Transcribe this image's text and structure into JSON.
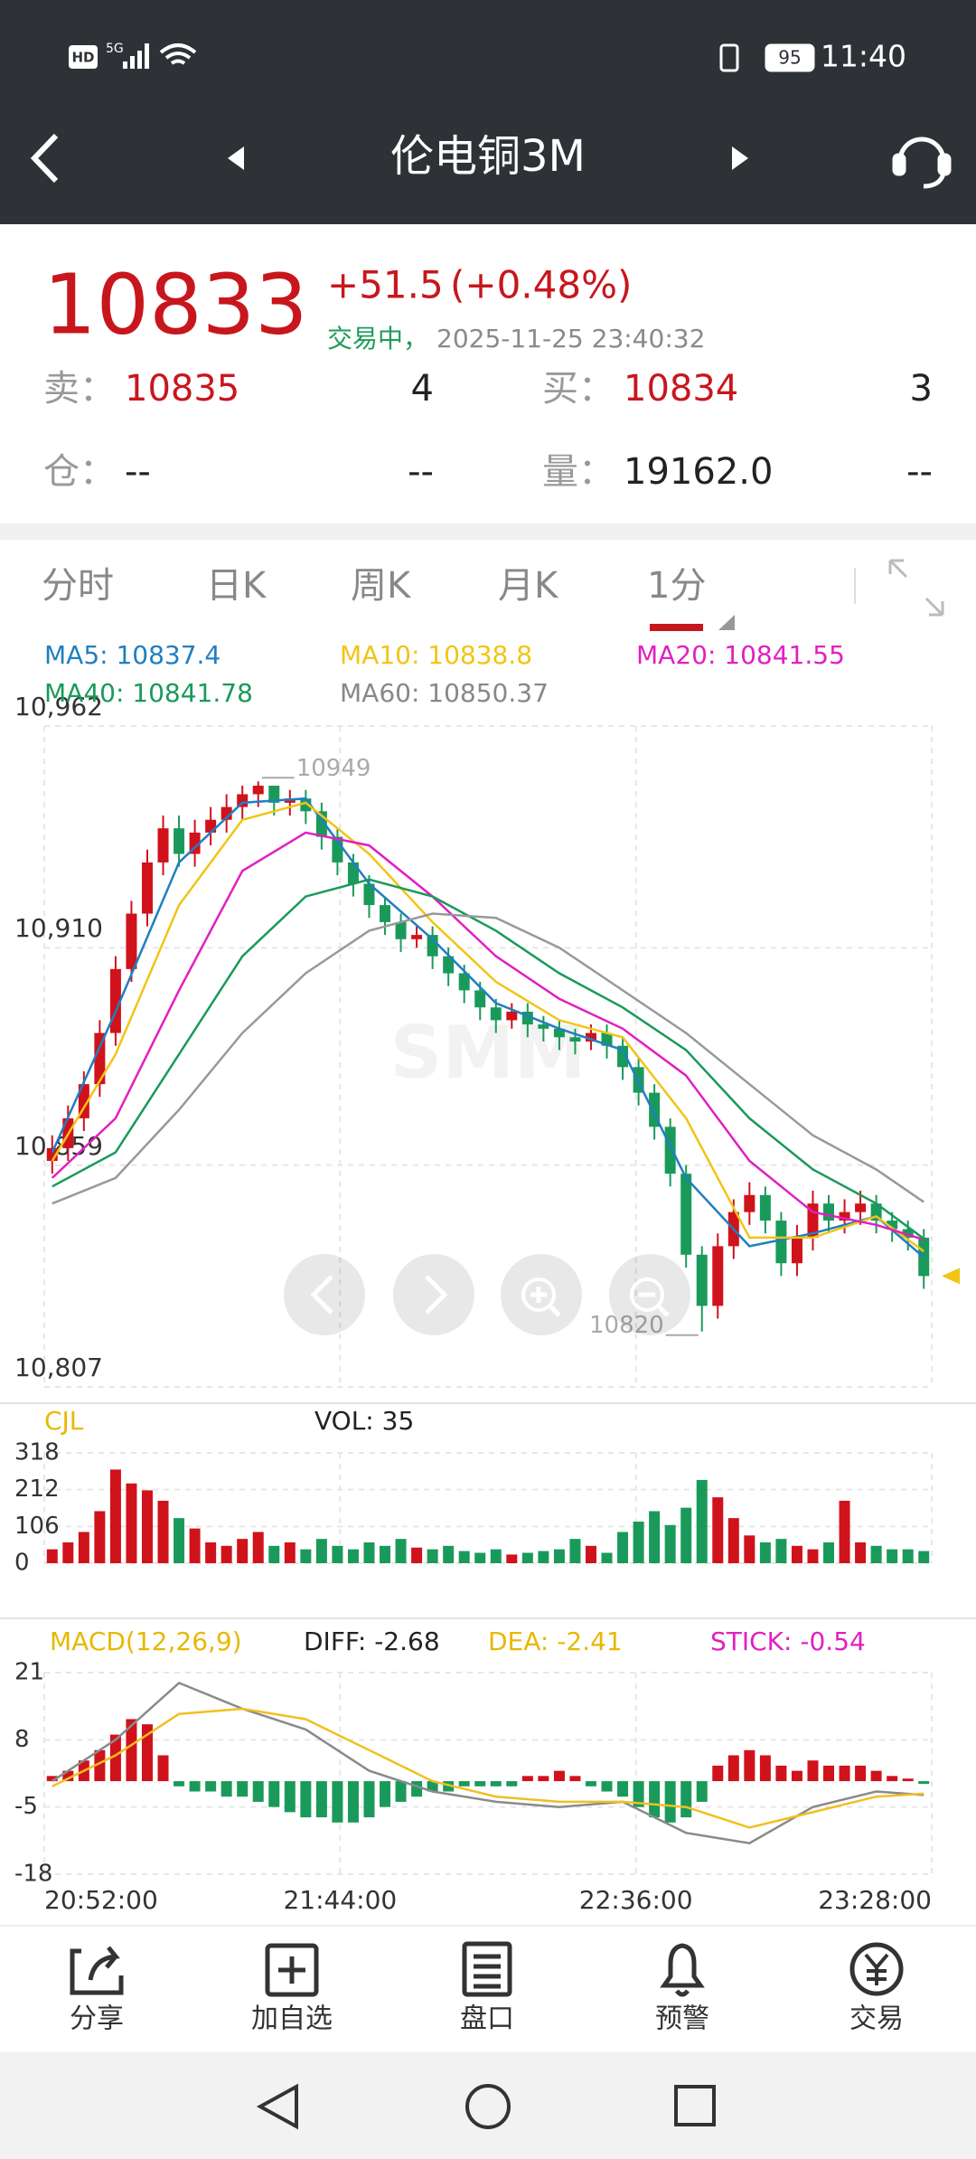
{
  "status_bar": {
    "hd": "HD",
    "network": "5G",
    "battery": "95",
    "time": "11:40"
  },
  "header": {
    "title": "伦电铜3M"
  },
  "quote": {
    "price": "10833",
    "change": "+51.5",
    "change_pct": "(+0.48%)",
    "status": "交易中，",
    "timestamp": "2025-11-25 23:40:32",
    "rows": [
      [
        "卖：",
        "10835",
        "4",
        "买：",
        "10834",
        "3"
      ],
      [
        "仓：",
        "--",
        "--",
        "量：",
        "19162.0",
        "--"
      ]
    ]
  },
  "tabs": [
    "分时",
    "日K",
    "周K",
    "月K",
    "1分"
  ],
  "active_tab": 4,
  "chart_data": [
    {
      "type": "candlestick",
      "watermark": "SMM",
      "ylim": [
        10807,
        10962
      ],
      "yticks": [
        {
          "value": 10807,
          "label": "10,807"
        },
        {
          "value": 10859,
          "label": "10,859"
        },
        {
          "value": 10910,
          "label": "10,910"
        },
        {
          "value": 10962,
          "label": "10,962"
        }
      ],
      "up_color": "#d0121b",
      "down_color": "#1a9a5a",
      "open": [
        10860,
        10863,
        10870,
        10878,
        10890,
        10905,
        10918,
        10930,
        10938,
        10932,
        10937,
        10940,
        10943,
        10946,
        10948,
        10944,
        10945,
        10942,
        10936,
        10930,
        10925,
        10920,
        10916,
        10912,
        10913,
        10908,
        10904,
        10900,
        10896,
        10893,
        10895,
        10892,
        10891,
        10889,
        10888,
        10890,
        10887,
        10882,
        10876,
        10868,
        10857,
        10838,
        10826,
        10840,
        10848,
        10852,
        10846,
        10836,
        10842,
        10850,
        10846,
        10848,
        10850,
        10846,
        10844,
        10842
      ],
      "high": [
        10866,
        10873,
        10881,
        10893,
        10908,
        10921,
        10933,
        10941,
        10941,
        10940,
        10943,
        10946,
        10948,
        10949,
        10948,
        10947,
        10947,
        10944,
        10938,
        10932,
        10927,
        10922,
        10918,
        10915,
        10915,
        10910,
        10906,
        10902,
        10898,
        10897,
        10897,
        10894,
        10893,
        10891,
        10892,
        10892,
        10889,
        10884,
        10878,
        10870,
        10859,
        10840,
        10843,
        10851,
        10855,
        10854,
        10848,
        10845,
        10853,
        10852,
        10851,
        10853,
        10852,
        10848,
        10846,
        10844
      ],
      "low": [
        10857,
        10860,
        10867,
        10875,
        10887,
        10902,
        10915,
        10927,
        10929,
        10929,
        10934,
        10937,
        10940,
        10943,
        10941,
        10941,
        10939,
        10933,
        10927,
        10922,
        10917,
        10913,
        10909,
        10910,
        10905,
        10901,
        10897,
        10893,
        10890,
        10891,
        10889,
        10888,
        10886,
        10885,
        10886,
        10884,
        10879,
        10873,
        10865,
        10854,
        10835,
        10820,
        10823,
        10837,
        10845,
        10843,
        10833,
        10833,
        10839,
        10843,
        10843,
        10845,
        10843,
        10841,
        10839,
        10830
      ],
      "close": [
        10863,
        10870,
        10878,
        10890,
        10905,
        10918,
        10930,
        10938,
        10932,
        10937,
        10940,
        10943,
        10946,
        10948,
        10944,
        10945,
        10942,
        10936,
        10930,
        10925,
        10920,
        10916,
        10912,
        10913,
        10908,
        10904,
        10900,
        10896,
        10893,
        10895,
        10892,
        10891,
        10889,
        10888,
        10890,
        10887,
        10882,
        10876,
        10868,
        10857,
        10838,
        10826,
        10840,
        10848,
        10852,
        10846,
        10836,
        10842,
        10850,
        10846,
        10848,
        10850,
        10846,
        10844,
        10842,
        10833
      ],
      "ma_x": [
        0,
        4,
        8,
        12,
        16,
        20,
        24,
        28,
        32,
        36,
        40,
        44,
        48,
        52,
        55
      ],
      "series": [
        {
          "label": "MA5: 10837.4",
          "color": "#1f7fc0",
          "values": [
            10862,
            10895,
            10930,
            10944,
            10945,
            10925,
            10912,
            10897,
            10891,
            10886,
            10856,
            10840,
            10843,
            10847,
            10837.4
          ]
        },
        {
          "label": "MA10: 10838.8",
          "color": "#f2c416",
          "values": [
            10860,
            10885,
            10920,
            10940,
            10944,
            10932,
            10916,
            10902,
            10893,
            10889,
            10870,
            10842,
            10842,
            10847,
            10838.8
          ]
        },
        {
          "label": "MA20: 10841.55",
          "color": "#e020c0",
          "values": [
            10856,
            10870,
            10900,
            10928,
            10937,
            10934,
            10922,
            10908,
            10898,
            10891,
            10880,
            10860,
            10848,
            10845,
            10841.55
          ]
        },
        {
          "label": "MA40: 10841.78",
          "color": "#1a9a5a",
          "values": [
            10854,
            10862,
            10885,
            10908,
            10922,
            10926,
            10922,
            10914,
            10904,
            10896,
            10886,
            10870,
            10858,
            10850,
            10841.78
          ]
        },
        {
          "label": "MA60: 10850.37",
          "color": "#999999",
          "values": [
            10850,
            10856,
            10872,
            10890,
            10904,
            10914,
            10918,
            10917,
            10910,
            10900,
            10890,
            10878,
            10866,
            10858,
            10850.37
          ]
        }
      ]
    },
    {
      "type": "bar",
      "title": "CJL",
      "value_label": "VOL: 35",
      "ylim": [
        0,
        318
      ],
      "yticks": [
        0,
        106,
        212,
        318
      ],
      "values": [
        40,
        60,
        90,
        150,
        270,
        230,
        210,
        180,
        130,
        100,
        60,
        50,
        70,
        90,
        50,
        60,
        40,
        70,
        50,
        40,
        60,
        50,
        70,
        45,
        40,
        50,
        35,
        30,
        40,
        25,
        30,
        35,
        40,
        70,
        50,
        30,
        90,
        120,
        150,
        110,
        160,
        240,
        190,
        130,
        80,
        60,
        70,
        50,
        40,
        60,
        180,
        60,
        50,
        40,
        40,
        35
      ]
    },
    {
      "type": "macd",
      "title": "MACD(12,26,9)",
      "ylim": [
        -18,
        21
      ],
      "yticks": [
        21,
        8,
        -5,
        -18
      ],
      "stick": {
        "label": "STICK: -0.54",
        "color": "#e020c0",
        "up_color": "#d0121b",
        "down_color": "#1a9a5a",
        "values": [
          1,
          2,
          4,
          6,
          9,
          12,
          11,
          5,
          -1,
          -2,
          -2,
          -3,
          -3,
          -4,
          -5,
          -6,
          -7,
          -7,
          -8,
          -8,
          -7,
          -5,
          -4,
          -3,
          -2,
          -2,
          -1,
          -1,
          -1,
          -1,
          1,
          1,
          2,
          1,
          -1,
          -2,
          -3,
          -5,
          -7,
          -8,
          -7,
          -4,
          3,
          5,
          6,
          5,
          3,
          2,
          4,
          3,
          3,
          3,
          2,
          1,
          0.5,
          -0.54
        ]
      },
      "series": [
        {
          "label": "DIFF: -2.68",
          "color": "#8a8a8a",
          "values": [
            0,
            8,
            19,
            14,
            10,
            2,
            -2,
            -4,
            -5,
            -4,
            -10,
            -12,
            -5,
            -2,
            -2.68
          ]
        },
        {
          "label": "DEA: -2.41",
          "color": "#f0c020",
          "values": [
            -1,
            5,
            13,
            14,
            12,
            6,
            0,
            -3,
            -4,
            -4,
            -5,
            -9,
            -6,
            -3,
            -2.41
          ]
        }
      ],
      "xticks": [
        "20:52:00",
        "21:44:00",
        "22:36:00",
        "23:28:00"
      ]
    }
  ],
  "toolbar": [
    "分享",
    "加自选",
    "盘口",
    "预警",
    "交易"
  ]
}
